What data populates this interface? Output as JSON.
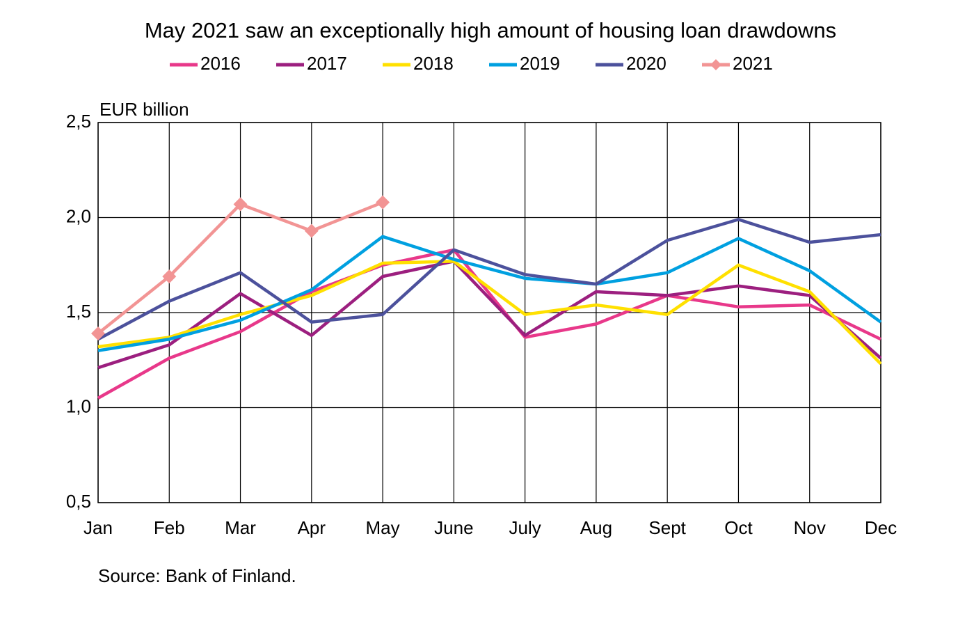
{
  "chart_data": {
    "type": "line",
    "title": "May 2021 saw an exceptionally high amount of housing loan drawdowns",
    "y_label": "EUR billion",
    "source": "Source: Bank of Finland.",
    "categories": [
      "Jan",
      "Feb",
      "Mar",
      "Apr",
      "May",
      "June",
      "July",
      "Aug",
      "Sept",
      "Oct",
      "Nov",
      "Dec"
    ],
    "ylim": [
      0.5,
      2.5
    ],
    "yticks": [
      {
        "value": 0.5,
        "label": "0,5"
      },
      {
        "value": 1.0,
        "label": "1,0"
      },
      {
        "value": 1.5,
        "label": "1,5"
      },
      {
        "value": 2.0,
        "label": "2,0"
      },
      {
        "value": 2.5,
        "label": "2,5"
      }
    ],
    "grid": true,
    "series": [
      {
        "name": "2016",
        "color": "#e8388a",
        "values": [
          1.05,
          1.26,
          1.4,
          1.61,
          1.75,
          1.83,
          1.37,
          1.44,
          1.59,
          1.53,
          1.54,
          1.36
        ]
      },
      {
        "name": "2017",
        "color": "#9c1f7f",
        "values": [
          1.21,
          1.33,
          1.6,
          1.38,
          1.69,
          1.77,
          1.38,
          1.61,
          1.59,
          1.64,
          1.59,
          1.26
        ]
      },
      {
        "name": "2018",
        "color": "#ffe000",
        "values": [
          1.32,
          1.37,
          1.49,
          1.59,
          1.76,
          1.77,
          1.49,
          1.54,
          1.49,
          1.75,
          1.61,
          1.23
        ]
      },
      {
        "name": "2019",
        "color": "#00a0e0",
        "values": [
          1.3,
          1.36,
          1.46,
          1.62,
          1.9,
          1.78,
          1.68,
          1.65,
          1.71,
          1.89,
          1.72,
          1.45
        ]
      },
      {
        "name": "2020",
        "color": "#4c519c",
        "values": [
          1.36,
          1.56,
          1.71,
          1.45,
          1.49,
          1.83,
          1.7,
          1.65,
          1.88,
          1.99,
          1.87,
          1.91
        ]
      },
      {
        "name": "2021",
        "color": "#f29494",
        "marker": "diamond",
        "values": [
          1.39,
          1.69,
          2.07,
          1.93,
          2.08,
          null,
          null,
          null,
          null,
          null,
          null,
          null
        ]
      }
    ]
  }
}
